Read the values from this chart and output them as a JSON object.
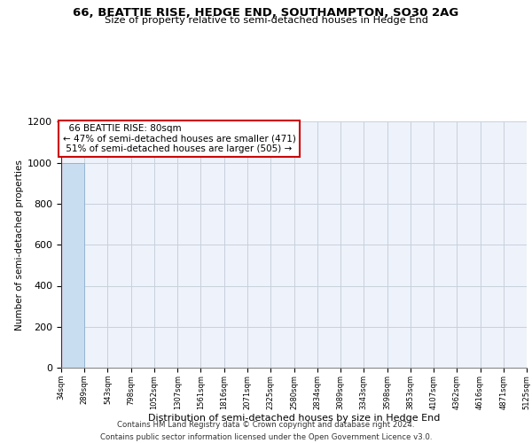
{
  "title": "66, BEATTIE RISE, HEDGE END, SOUTHAMPTON, SO30 2AG",
  "subtitle": "Size of property relative to semi-detached houses in Hedge End",
  "xlabel": "Distribution of semi-detached houses by size in Hedge End",
  "ylabel": "Number of semi-detached properties",
  "property_label": "66 BEATTIE RISE: 80sqm",
  "pct_smaller": 47,
  "pct_smaller_count": 471,
  "pct_larger": 51,
  "pct_larger_count": 505,
  "bar_color": "#c9ddf0",
  "bar_edge_color": "#89afd4",
  "highlight_color": "#aa0000",
  "annotation_box_color": "#cc0000",
  "bin_edges": [
    34,
    289,
    543,
    798,
    1052,
    1307,
    1561,
    1816,
    2071,
    2325,
    2580,
    2834,
    3089,
    3343,
    3598,
    3853,
    4107,
    4362,
    4616,
    4871,
    5125
  ],
  "bin_labels": [
    "34sqm",
    "289sqm",
    "543sqm",
    "798sqm",
    "1052sqm",
    "1307sqm",
    "1561sqm",
    "1816sqm",
    "2071sqm",
    "2325sqm",
    "2580sqm",
    "2834sqm",
    "3089sqm",
    "3343sqm",
    "3598sqm",
    "3853sqm",
    "4107sqm",
    "4362sqm",
    "4616sqm",
    "4871sqm",
    "5125sqm"
  ],
  "bar_heights": [
    1000,
    0,
    0,
    0,
    0,
    0,
    0,
    0,
    0,
    0,
    0,
    0,
    0,
    0,
    0,
    0,
    0,
    0,
    0,
    0
  ],
  "ylim": [
    0,
    1200
  ],
  "yticks": [
    0,
    200,
    400,
    600,
    800,
    1000,
    1200
  ],
  "footer_line1": "Contains HM Land Registry data © Crown copyright and database right 2024.",
  "footer_line2": "Contains public sector information licensed under the Open Government Licence v3.0.",
  "background_color": "#eef2fa",
  "grid_color": "#c8d0dc"
}
